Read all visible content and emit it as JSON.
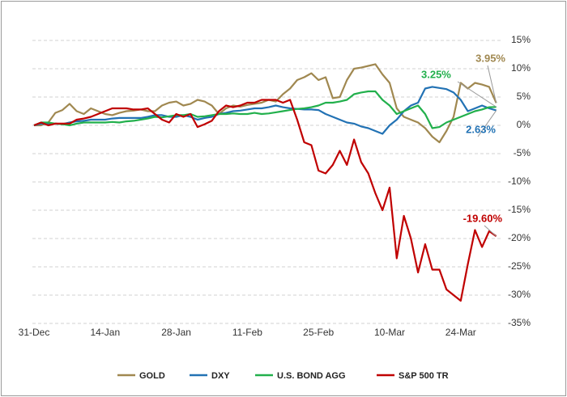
{
  "chart_data": {
    "type": "line",
    "categories": [
      "31-Dec",
      null,
      null,
      null,
      null,
      null,
      null,
      null,
      null,
      null,
      "14-Jan",
      null,
      null,
      null,
      null,
      null,
      null,
      null,
      null,
      null,
      "28-Jan",
      null,
      null,
      null,
      null,
      null,
      null,
      null,
      null,
      null,
      "11-Feb",
      null,
      null,
      null,
      null,
      null,
      null,
      null,
      null,
      null,
      "25-Feb",
      null,
      null,
      null,
      null,
      null,
      null,
      null,
      null,
      null,
      "10-Mar",
      null,
      null,
      null,
      null,
      null,
      null,
      null,
      null,
      null,
      "24-Mar",
      null,
      null,
      null,
      null,
      null
    ],
    "series": [
      {
        "name": "GOLD",
        "color": "#A08850",
        "end_label": "3.95%",
        "values": [
          0,
          0,
          0.5,
          2.2,
          2.7,
          3.8,
          2.5,
          2.0,
          3.0,
          2.5,
          2.0,
          1.8,
          2.2,
          2.5,
          2.6,
          2.8,
          2.5,
          2.5,
          3.5,
          4.0,
          4.2,
          3.5,
          3.8,
          4.5,
          4.2,
          3.5,
          2.0,
          3.0,
          3.5,
          3.3,
          3.6,
          3.8,
          4.0,
          4.5,
          4.2,
          5.5,
          6.5,
          8.0,
          8.5,
          9.2,
          8.0,
          8.5,
          4.8,
          5.0,
          8.0,
          10.0,
          10.2,
          10.5,
          10.8,
          9.0,
          7.5,
          3.0,
          1.5,
          1.0,
          0.5,
          -0.5,
          -2.0,
          -3.0,
          -1.0,
          1.5,
          7.5,
          6.5,
          7.5,
          7.2,
          6.8,
          3.95
        ]
      },
      {
        "name": "DXY",
        "color": "#2272B4",
        "end_label": "2.63%",
        "values": [
          0,
          0.3,
          0.2,
          0.3,
          0.2,
          0.5,
          0.7,
          0.8,
          1.0,
          1.0,
          1.0,
          1.2,
          1.3,
          1.3,
          1.3,
          1.3,
          1.5,
          1.8,
          1.8,
          1.5,
          1.5,
          1.8,
          1.5,
          1.0,
          1.3,
          1.5,
          2.0,
          2.2,
          2.5,
          2.6,
          2.8,
          3.0,
          3.0,
          3.2,
          3.5,
          3.2,
          3.0,
          2.9,
          2.8,
          2.8,
          2.7,
          2.0,
          1.5,
          1.0,
          0.5,
          0.3,
          -0.2,
          -0.5,
          -1.0,
          -1.5,
          0.0,
          1.0,
          2.5,
          3.5,
          4.0,
          6.5,
          6.8,
          6.6,
          6.4,
          5.8,
          4.5,
          2.5,
          3.0,
          3.5,
          3.0,
          2.63
        ]
      },
      {
        "name": "U.S. BOND AGG",
        "color": "#22B04C",
        "end_label": "3.25%",
        "values": [
          0,
          0.5,
          0.5,
          0.3,
          0.2,
          0.0,
          0.3,
          0.5,
          0.5,
          0.5,
          0.5,
          0.6,
          0.5,
          0.7,
          0.8,
          1.0,
          1.2,
          1.5,
          1.4,
          1.6,
          1.8,
          1.8,
          2.0,
          1.5,
          1.6,
          1.8,
          2.0,
          2.0,
          2.1,
          2.0,
          2.0,
          2.2,
          2.0,
          2.1,
          2.3,
          2.5,
          2.7,
          2.9,
          3.0,
          3.2,
          3.5,
          4.0,
          4.0,
          4.2,
          4.5,
          5.5,
          5.8,
          6.0,
          6.0,
          4.5,
          3.5,
          2.0,
          2.5,
          3.0,
          3.5,
          2.0,
          -0.5,
          -0.3,
          0.5,
          1.0,
          1.5,
          2.0,
          2.5,
          2.8,
          3.2,
          3.25
        ]
      },
      {
        "name": "S&P 500 TR",
        "color": "#C00000",
        "end_label": "-19.60%",
        "values": [
          0,
          0.5,
          0,
          0.3,
          0.3,
          0.3,
          1.0,
          1.2,
          1.5,
          2.0,
          2.5,
          3.0,
          3.0,
          3.0,
          2.8,
          2.8,
          3.0,
          2.0,
          1.0,
          0.5,
          2.0,
          1.5,
          2.0,
          -0.3,
          0.2,
          0.8,
          2.5,
          3.5,
          3.2,
          3.5,
          4.0,
          4.0,
          4.5,
          4.5,
          4.5,
          4.0,
          4.5,
          1.0,
          -3.0,
          -3.5,
          -8.0,
          -8.5,
          -7.0,
          -4.5,
          -7.0,
          -2.5,
          -6.5,
          -8.5,
          -12.0,
          -15.0,
          -11.0,
          -23.5,
          -16.0,
          -20.0,
          -26.0,
          -21.0,
          -25.5,
          -25.5,
          -29.0,
          -30.0,
          -31.0,
          -24.5,
          -18.5,
          -21.5,
          -18.7,
          -19.6
        ]
      }
    ],
    "ylim": [
      -35,
      15
    ],
    "yticks": [
      {
        "value": -35,
        "label": "-35%"
      },
      {
        "value": -30,
        "label": "-30%"
      },
      {
        "value": -25,
        "label": "-25%"
      },
      {
        "value": -20,
        "label": "-20%"
      },
      {
        "value": -15,
        "label": "-15%"
      },
      {
        "value": -10,
        "label": "-10%"
      },
      {
        "value": -5,
        "label": "-5%"
      },
      {
        "value": 0,
        "label": "0%"
      },
      {
        "value": 5,
        "label": "5%"
      },
      {
        "value": 10,
        "label": "10%"
      },
      {
        "value": 15,
        "label": "15%"
      }
    ],
    "grid": true,
    "legend": "bottom"
  }
}
